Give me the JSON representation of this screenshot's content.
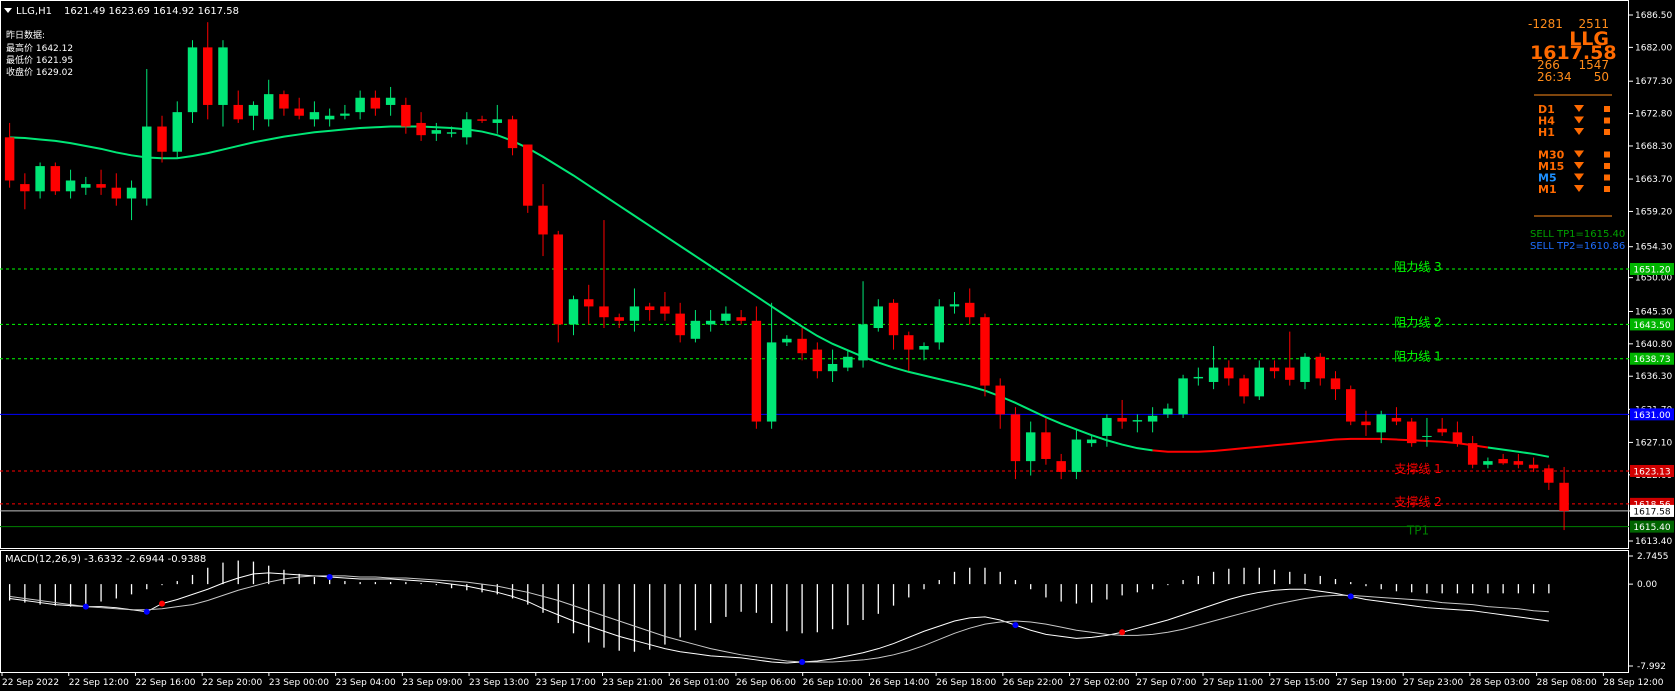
{
  "header": {
    "symbol_tf": "LLG,H1",
    "ohlc": "1621.49 1623.69 1614.92 1617.58",
    "prev_day_title": "昨日数据:",
    "prev_high": "最高价 1642.12",
    "prev_low": "最低价 1621.95",
    "prev_close": "收盘价 1629.02"
  },
  "panel": {
    "left_value": "-1281",
    "right_value": "2511",
    "symbol": "LLG",
    "price": "1617.58",
    "sub_left": "266",
    "sub_right": "1547",
    "timer": "26:34",
    "timer_right": "50",
    "timeframes": [
      {
        "label": "D1",
        "color": "#ff6a00"
      },
      {
        "label": "H4",
        "color": "#ff6a00"
      },
      {
        "label": "H1",
        "color": "#ff6a00"
      },
      {
        "label": "M30",
        "color": "#ff6a00"
      },
      {
        "label": "M15",
        "color": "#ff6a00"
      },
      {
        "label": "M5",
        "color": "#1e90ff"
      },
      {
        "label": "M1",
        "color": "#ff6a00"
      }
    ],
    "sell_tp1": "SELL TP1=1615.40",
    "sell_tp2": "SELL TP2=1610.86"
  },
  "levels": [
    {
      "price": 1651.2,
      "label": "阻力线 3",
      "tag": "1651.20",
      "color": "#00ff00",
      "tag_bg": "#00b400",
      "dash": true
    },
    {
      "price": 1643.5,
      "label": "阻力线 2",
      "tag": "1643.50",
      "color": "#00ff00",
      "tag_bg": "#00b400",
      "dash": true
    },
    {
      "price": 1638.73,
      "label": "阻力线 1",
      "tag": "1638.73",
      "color": "#00ff00",
      "tag_bg": "#00b400",
      "dash": true
    },
    {
      "price": 1631.0,
      "label": "",
      "tag": "1631.00",
      "color": "#0000ff",
      "tag_bg": "#0000ff",
      "dash": false
    },
    {
      "price": 1623.13,
      "label": "支撑线 1",
      "tag": "1623.13",
      "color": "#ff0000",
      "tag_bg": "#d00000",
      "dash": true
    },
    {
      "price": 1618.56,
      "label": "支撑线 2",
      "tag": "1618.56",
      "color": "#ff0000",
      "tag_bg": "#d00000",
      "dash": true
    },
    {
      "price": 1615.4,
      "label": "TP1",
      "tag": "1615.40",
      "color": "#008000",
      "tag_bg": "#006400",
      "dash": false
    }
  ],
  "current_price_tag": "1617.58",
  "macd": {
    "label": "MACD(12,26,9) -3.6332 -2.6944 -0.9388",
    "ticks": [
      "2.7455",
      "0.00",
      "-7.992"
    ]
  },
  "chart_data": {
    "type": "candlestick",
    "timeframe": "H1",
    "price_axis": {
      "min": 1613.4,
      "max": 1686.5,
      "ticks": [
        "1686.50",
        "1682.00",
        "1677.30",
        "1672.80",
        "1668.30",
        "1663.70",
        "1659.20",
        "1654.30",
        "1650.00",
        "1645.30",
        "1640.80",
        "1636.30",
        "1631.70",
        "1627.10",
        "1622.60",
        "1617.58",
        "1613.40"
      ]
    },
    "x_labels": [
      "22 Sep 2022",
      "22 Sep 12:00",
      "22 Sep 16:00",
      "22 Sep 20:00",
      "23 Sep 00:00",
      "23 Sep 04:00",
      "23 Sep 09:00",
      "23 Sep 13:00",
      "23 Sep 17:00",
      "23 Sep 21:00",
      "26 Sep 01:00",
      "26 Sep 06:00",
      "26 Sep 10:00",
      "26 Sep 14:00",
      "26 Sep 18:00",
      "26 Sep 22:00",
      "27 Sep 02:00",
      "27 Sep 07:00",
      "27 Sep 11:00",
      "27 Sep 15:00",
      "27 Sep 19:00",
      "27 Sep 23:00",
      "28 Sep 03:00",
      "28 Sep 08:00",
      "28 Sep 12:00"
    ],
    "candles": [
      [
        1669.5,
        1671.5,
        1662.5,
        1663.5
      ],
      [
        1663.0,
        1664.5,
        1659.5,
        1662.0
      ],
      [
        1662.0,
        1666.0,
        1661.0,
        1665.5
      ],
      [
        1665.5,
        1666.0,
        1661.5,
        1662.0
      ],
      [
        1662.0,
        1665.0,
        1661.0,
        1663.5
      ],
      [
        1662.5,
        1664.0,
        1661.5,
        1663.0
      ],
      [
        1663.0,
        1665.0,
        1661.5,
        1662.5
      ],
      [
        1662.5,
        1664.5,
        1660.0,
        1661.0
      ],
      [
        1661.0,
        1663.5,
        1658.0,
        1662.5
      ],
      [
        1661.0,
        1679.0,
        1660.0,
        1671.0
      ],
      [
        1671.0,
        1672.5,
        1666.0,
        1667.5
      ],
      [
        1667.5,
        1674.5,
        1666.5,
        1673.0
      ],
      [
        1673.0,
        1683.0,
        1671.5,
        1682.0
      ],
      [
        1682.0,
        1685.5,
        1672.0,
        1674.0
      ],
      [
        1674.0,
        1683.0,
        1671.0,
        1682.0
      ],
      [
        1674.0,
        1676.0,
        1671.5,
        1672.0
      ],
      [
        1672.5,
        1674.5,
        1670.5,
        1674.0
      ],
      [
        1672.0,
        1677.5,
        1671.0,
        1675.5
      ],
      [
        1675.5,
        1676.0,
        1672.5,
        1673.5
      ],
      [
        1673.5,
        1675.0,
        1672.0,
        1672.5
      ],
      [
        1672.0,
        1674.5,
        1671.0,
        1673.0
      ],
      [
        1672.0,
        1673.5,
        1671.0,
        1672.5
      ],
      [
        1672.5,
        1674.0,
        1672.0,
        1672.8
      ],
      [
        1673.0,
        1676.0,
        1672.0,
        1675.0
      ],
      [
        1675.0,
        1676.0,
        1672.5,
        1673.5
      ],
      [
        1674.0,
        1676.5,
        1672.5,
        1675.0
      ],
      [
        1674.0,
        1675.0,
        1670.0,
        1671.0
      ],
      [
        1671.5,
        1673.0,
        1669.0,
        1669.8
      ],
      [
        1670.0,
        1671.5,
        1669.0,
        1670.5
      ],
      [
        1670.0,
        1671.0,
        1669.5,
        1670.2
      ],
      [
        1669.5,
        1673.0,
        1668.5,
        1672.0
      ],
      [
        1672.0,
        1672.5,
        1671.5,
        1671.8
      ],
      [
        1671.5,
        1674.0,
        1670.0,
        1672.0
      ],
      [
        1672.0,
        1672.5,
        1667.0,
        1668.0
      ],
      [
        1668.5,
        1668.5,
        1659.0,
        1660.0
      ],
      [
        1660.0,
        1663.0,
        1653.0,
        1656.0
      ],
      [
        1656.0,
        1656.5,
        1641.0,
        1643.5
      ],
      [
        1643.5,
        1647.5,
        1642.0,
        1647.0
      ],
      [
        1647.0,
        1649.0,
        1643.5,
        1646.0
      ],
      [
        1646.0,
        1658.0,
        1643.0,
        1644.5
      ],
      [
        1644.5,
        1645.0,
        1643.0,
        1644.0
      ],
      [
        1644.0,
        1648.5,
        1642.5,
        1646.0
      ],
      [
        1646.0,
        1646.5,
        1644.0,
        1645.5
      ],
      [
        1646.0,
        1648.0,
        1644.0,
        1645.0
      ],
      [
        1645.0,
        1646.5,
        1641.0,
        1642.0
      ],
      [
        1641.5,
        1645.5,
        1641.0,
        1644.0
      ],
      [
        1643.5,
        1645.5,
        1642.5,
        1644.0
      ],
      [
        1644.0,
        1646.0,
        1643.5,
        1645.0
      ],
      [
        1644.5,
        1645.5,
        1643.5,
        1644.0
      ],
      [
        1644.0,
        1646.0,
        1629.0,
        1630.0
      ],
      [
        1630.0,
        1646.5,
        1629.0,
        1641.0
      ],
      [
        1641.0,
        1642.0,
        1640.5,
        1641.5
      ],
      [
        1641.5,
        1643.0,
        1638.5,
        1639.5
      ],
      [
        1640.0,
        1641.0,
        1636.0,
        1637.0
      ],
      [
        1637.0,
        1640.0,
        1635.5,
        1638.0
      ],
      [
        1637.5,
        1640.0,
        1637.0,
        1639.0
      ],
      [
        1638.5,
        1649.5,
        1637.5,
        1643.5
      ],
      [
        1643.0,
        1647.0,
        1642.5,
        1646.0
      ],
      [
        1646.5,
        1647.0,
        1640.0,
        1642.0
      ],
      [
        1642.0,
        1642.5,
        1637.0,
        1640.0
      ],
      [
        1640.0,
        1641.0,
        1638.5,
        1640.5
      ],
      [
        1641.0,
        1647.0,
        1640.0,
        1646.0
      ],
      [
        1646.0,
        1648.0,
        1645.0,
        1646.3
      ],
      [
        1646.5,
        1648.5,
        1643.5,
        1644.5
      ],
      [
        1644.5,
        1645.0,
        1633.5,
        1635.0
      ],
      [
        1635.0,
        1636.0,
        1629.0,
        1631.0
      ],
      [
        1631.0,
        1632.0,
        1622.0,
        1624.5
      ],
      [
        1624.5,
        1630.0,
        1622.5,
        1628.5
      ],
      [
        1628.5,
        1630.5,
        1624.0,
        1624.8
      ],
      [
        1624.5,
        1625.5,
        1622.0,
        1623.0
      ],
      [
        1623.0,
        1629.0,
        1622.0,
        1627.5
      ],
      [
        1627.0,
        1628.0,
        1626.5,
        1627.5
      ],
      [
        1628.0,
        1631.0,
        1626.5,
        1630.5
      ],
      [
        1630.5,
        1633.0,
        1629.0,
        1630.0
      ],
      [
        1630.0,
        1631.0,
        1628.5,
        1630.2
      ],
      [
        1630.0,
        1632.0,
        1628.5,
        1630.8
      ],
      [
        1631.0,
        1632.5,
        1630.5,
        1631.8
      ],
      [
        1631.0,
        1636.5,
        1630.5,
        1636.0
      ],
      [
        1636.0,
        1637.5,
        1635.0,
        1636.2
      ],
      [
        1635.5,
        1640.5,
        1634.5,
        1637.5
      ],
      [
        1637.5,
        1638.5,
        1635.0,
        1636.0
      ],
      [
        1636.0,
        1636.5,
        1632.5,
        1633.5
      ],
      [
        1633.5,
        1638.5,
        1633.0,
        1637.5
      ],
      [
        1637.5,
        1638.5,
        1636.0,
        1637.0
      ],
      [
        1637.5,
        1642.5,
        1635.0,
        1635.8
      ],
      [
        1635.5,
        1639.5,
        1634.5,
        1639.0
      ],
      [
        1639.0,
        1639.5,
        1635.0,
        1636.0
      ],
      [
        1636.0,
        1637.0,
        1633.0,
        1634.5
      ],
      [
        1634.5,
        1635.0,
        1629.5,
        1630.0
      ],
      [
        1630.0,
        1631.5,
        1628.0,
        1629.5
      ],
      [
        1628.5,
        1631.5,
        1627.0,
        1631.0
      ],
      [
        1630.5,
        1632.0,
        1629.5,
        1630.0
      ],
      [
        1630.0,
        1630.5,
        1626.5,
        1627.0
      ],
      [
        1628.0,
        1630.5,
        1626.5,
        1628.0
      ],
      [
        1629.0,
        1630.5,
        1628.0,
        1628.5
      ],
      [
        1628.5,
        1630.0,
        1626.5,
        1627.0
      ],
      [
        1627.0,
        1628.0,
        1623.5,
        1624.0
      ],
      [
        1624.0,
        1625.0,
        1623.5,
        1624.5
      ],
      [
        1624.8,
        1625.5,
        1624.0,
        1624.2
      ],
      [
        1624.5,
        1625.5,
        1623.5,
        1624.0
      ],
      [
        1624.0,
        1625.0,
        1623.0,
        1623.5
      ],
      [
        1623.5,
        1624.0,
        1620.5,
        1621.5
      ],
      [
        1621.49,
        1623.69,
        1614.92,
        1617.58
      ]
    ],
    "ma_line": {
      "color_up": "#ff0000",
      "color_down": "#00e676",
      "values": [
        1669.5,
        1669.4,
        1669.2,
        1669.0,
        1668.7,
        1668.3,
        1667.9,
        1667.4,
        1667.0,
        1666.7,
        1666.6,
        1666.6,
        1666.9,
        1667.3,
        1667.8,
        1668.3,
        1668.8,
        1669.2,
        1669.6,
        1669.9,
        1670.2,
        1670.4,
        1670.6,
        1670.8,
        1670.9,
        1671.0,
        1671.0,
        1671.0,
        1670.9,
        1670.8,
        1670.6,
        1670.3,
        1669.8,
        1669.0,
        1668.0,
        1666.8,
        1665.5,
        1664.2,
        1662.8,
        1661.4,
        1660.0,
        1658.6,
        1657.2,
        1655.8,
        1654.4,
        1653.0,
        1651.6,
        1650.2,
        1648.8,
        1647.4,
        1646.0,
        1644.6,
        1643.2,
        1641.9,
        1640.8,
        1639.9,
        1639.0,
        1638.2,
        1637.5,
        1636.9,
        1636.4,
        1635.9,
        1635.4,
        1634.9,
        1634.3,
        1633.5,
        1632.6,
        1631.6,
        1630.6,
        1629.7,
        1628.9,
        1628.1,
        1627.4,
        1626.8,
        1626.3,
        1626.0,
        1625.8,
        1625.8,
        1625.8,
        1625.9,
        1626.1,
        1626.3,
        1626.5,
        1626.7,
        1626.9,
        1627.1,
        1627.3,
        1627.5,
        1627.6,
        1627.6,
        1627.6,
        1627.5,
        1627.4,
        1627.3,
        1627.2,
        1627.0,
        1626.7,
        1626.4,
        1626.1,
        1625.8,
        1625.5,
        1625.1
      ],
      "turn_index": 75
    },
    "macd_histogram": [
      -1.6,
      -1.8,
      -2.0,
      -2.1,
      -2.2,
      -2.0,
      -1.7,
      -1.4,
      -1.0,
      -0.5,
      -0.1,
      0.3,
      0.9,
      1.6,
      2.1,
      2.3,
      2.2,
      1.8,
      1.4,
      1.0,
      0.7,
      0.5,
      0.3,
      0.2,
      0.2,
      0.2,
      0.2,
      0.1,
      -0.1,
      -0.4,
      -0.6,
      -0.8,
      -1.0,
      -1.4,
      -2.0,
      -2.8,
      -3.8,
      -4.8,
      -5.7,
      -6.2,
      -6.5,
      -6.6,
      -6.4,
      -5.9,
      -5.2,
      -4.5,
      -3.8,
      -3.2,
      -2.7,
      -2.8,
      -3.8,
      -4.6,
      -4.8,
      -4.7,
      -4.4,
      -4.0,
      -3.5,
      -2.9,
      -2.1,
      -1.3,
      -0.5,
      0.4,
      1.2,
      1.6,
      1.6,
      1.2,
      0.4,
      -0.5,
      -1.3,
      -1.7,
      -1.9,
      -1.8,
      -1.5,
      -1.1,
      -0.8,
      -0.5,
      -0.1,
      0.4,
      0.8,
      1.2,
      1.5,
      1.6,
      1.6,
      1.4,
      1.2,
      1.0,
      0.8,
      0.5,
      0.2,
      -0.2,
      -0.5,
      -0.7,
      -0.8,
      -0.9,
      -0.9,
      -0.9,
      -0.9,
      -0.9,
      -0.9,
      -0.9,
      -0.9,
      -0.9
    ],
    "macd_line": [
      -1.4,
      -1.6,
      -1.8,
      -2.0,
      -2.1,
      -2.2,
      -2.2,
      -2.3,
      -2.5,
      -2.7,
      -1.9,
      -1.5,
      -1.0,
      -0.5,
      0.1,
      0.6,
      1.0,
      1.1,
      1.0,
      0.9,
      0.8,
      0.7,
      0.6,
      0.5,
      0.5,
      0.5,
      0.4,
      0.3,
      0.2,
      0.0,
      -0.2,
      -0.5,
      -0.8,
      -1.2,
      -1.7,
      -2.4,
      -3.0,
      -3.6,
      -4.1,
      -4.6,
      -5.1,
      -5.5,
      -5.9,
      -6.3,
      -6.6,
      -6.8,
      -7.0,
      -7.1,
      -7.2,
      -7.4,
      -7.6,
      -7.7,
      -7.6,
      -7.5,
      -7.3,
      -7.0,
      -6.7,
      -6.3,
      -5.8,
      -5.2,
      -4.6,
      -4.1,
      -3.6,
      -3.3,
      -3.2,
      -3.5,
      -4.0,
      -4.5,
      -4.9,
      -5.1,
      -5.3,
      -5.2,
      -5.0,
      -4.7,
      -4.3,
      -3.9,
      -3.5,
      -3.0,
      -2.5,
      -2.0,
      -1.5,
      -1.1,
      -0.8,
      -0.6,
      -0.5,
      -0.5,
      -0.7,
      -0.9,
      -1.2,
      -1.5,
      -1.7,
      -1.9,
      -2.1,
      -2.3,
      -2.4,
      -2.5,
      -2.6,
      -2.8,
      -3.0,
      -3.2,
      -3.4,
      -3.6
    ],
    "macd_signal": [
      -1.2,
      -1.4,
      -1.6,
      -1.8,
      -2.0,
      -2.2,
      -2.3,
      -2.4,
      -2.5,
      -2.5,
      -2.4,
      -2.2,
      -2.0,
      -1.6,
      -1.1,
      -0.6,
      -0.2,
      0.2,
      0.5,
      0.7,
      0.8,
      0.8,
      0.8,
      0.7,
      0.7,
      0.6,
      0.6,
      0.5,
      0.4,
      0.3,
      0.2,
      0.0,
      -0.2,
      -0.5,
      -0.8,
      -1.2,
      -1.6,
      -2.1,
      -2.6,
      -3.1,
      -3.6,
      -4.1,
      -4.6,
      -5.1,
      -5.5,
      -5.9,
      -6.3,
      -6.6,
      -6.9,
      -7.1,
      -7.3,
      -7.5,
      -7.6,
      -7.6,
      -7.6,
      -7.5,
      -7.4,
      -7.2,
      -6.9,
      -6.5,
      -6.0,
      -5.4,
      -4.8,
      -4.3,
      -3.9,
      -3.7,
      -3.6,
      -3.7,
      -3.9,
      -4.2,
      -4.5,
      -4.7,
      -4.9,
      -5.0,
      -5.0,
      -4.9,
      -4.7,
      -4.4,
      -4.0,
      -3.6,
      -3.2,
      -2.8,
      -2.4,
      -2.0,
      -1.7,
      -1.4,
      -1.2,
      -1.1,
      -1.1,
      -1.2,
      -1.3,
      -1.4,
      -1.5,
      -1.6,
      -1.8,
      -1.9,
      -2.0,
      -2.2,
      -2.3,
      -2.4,
      -2.6,
      -2.7
    ],
    "macd_range": [
      -7.992,
      2.7455
    ]
  }
}
